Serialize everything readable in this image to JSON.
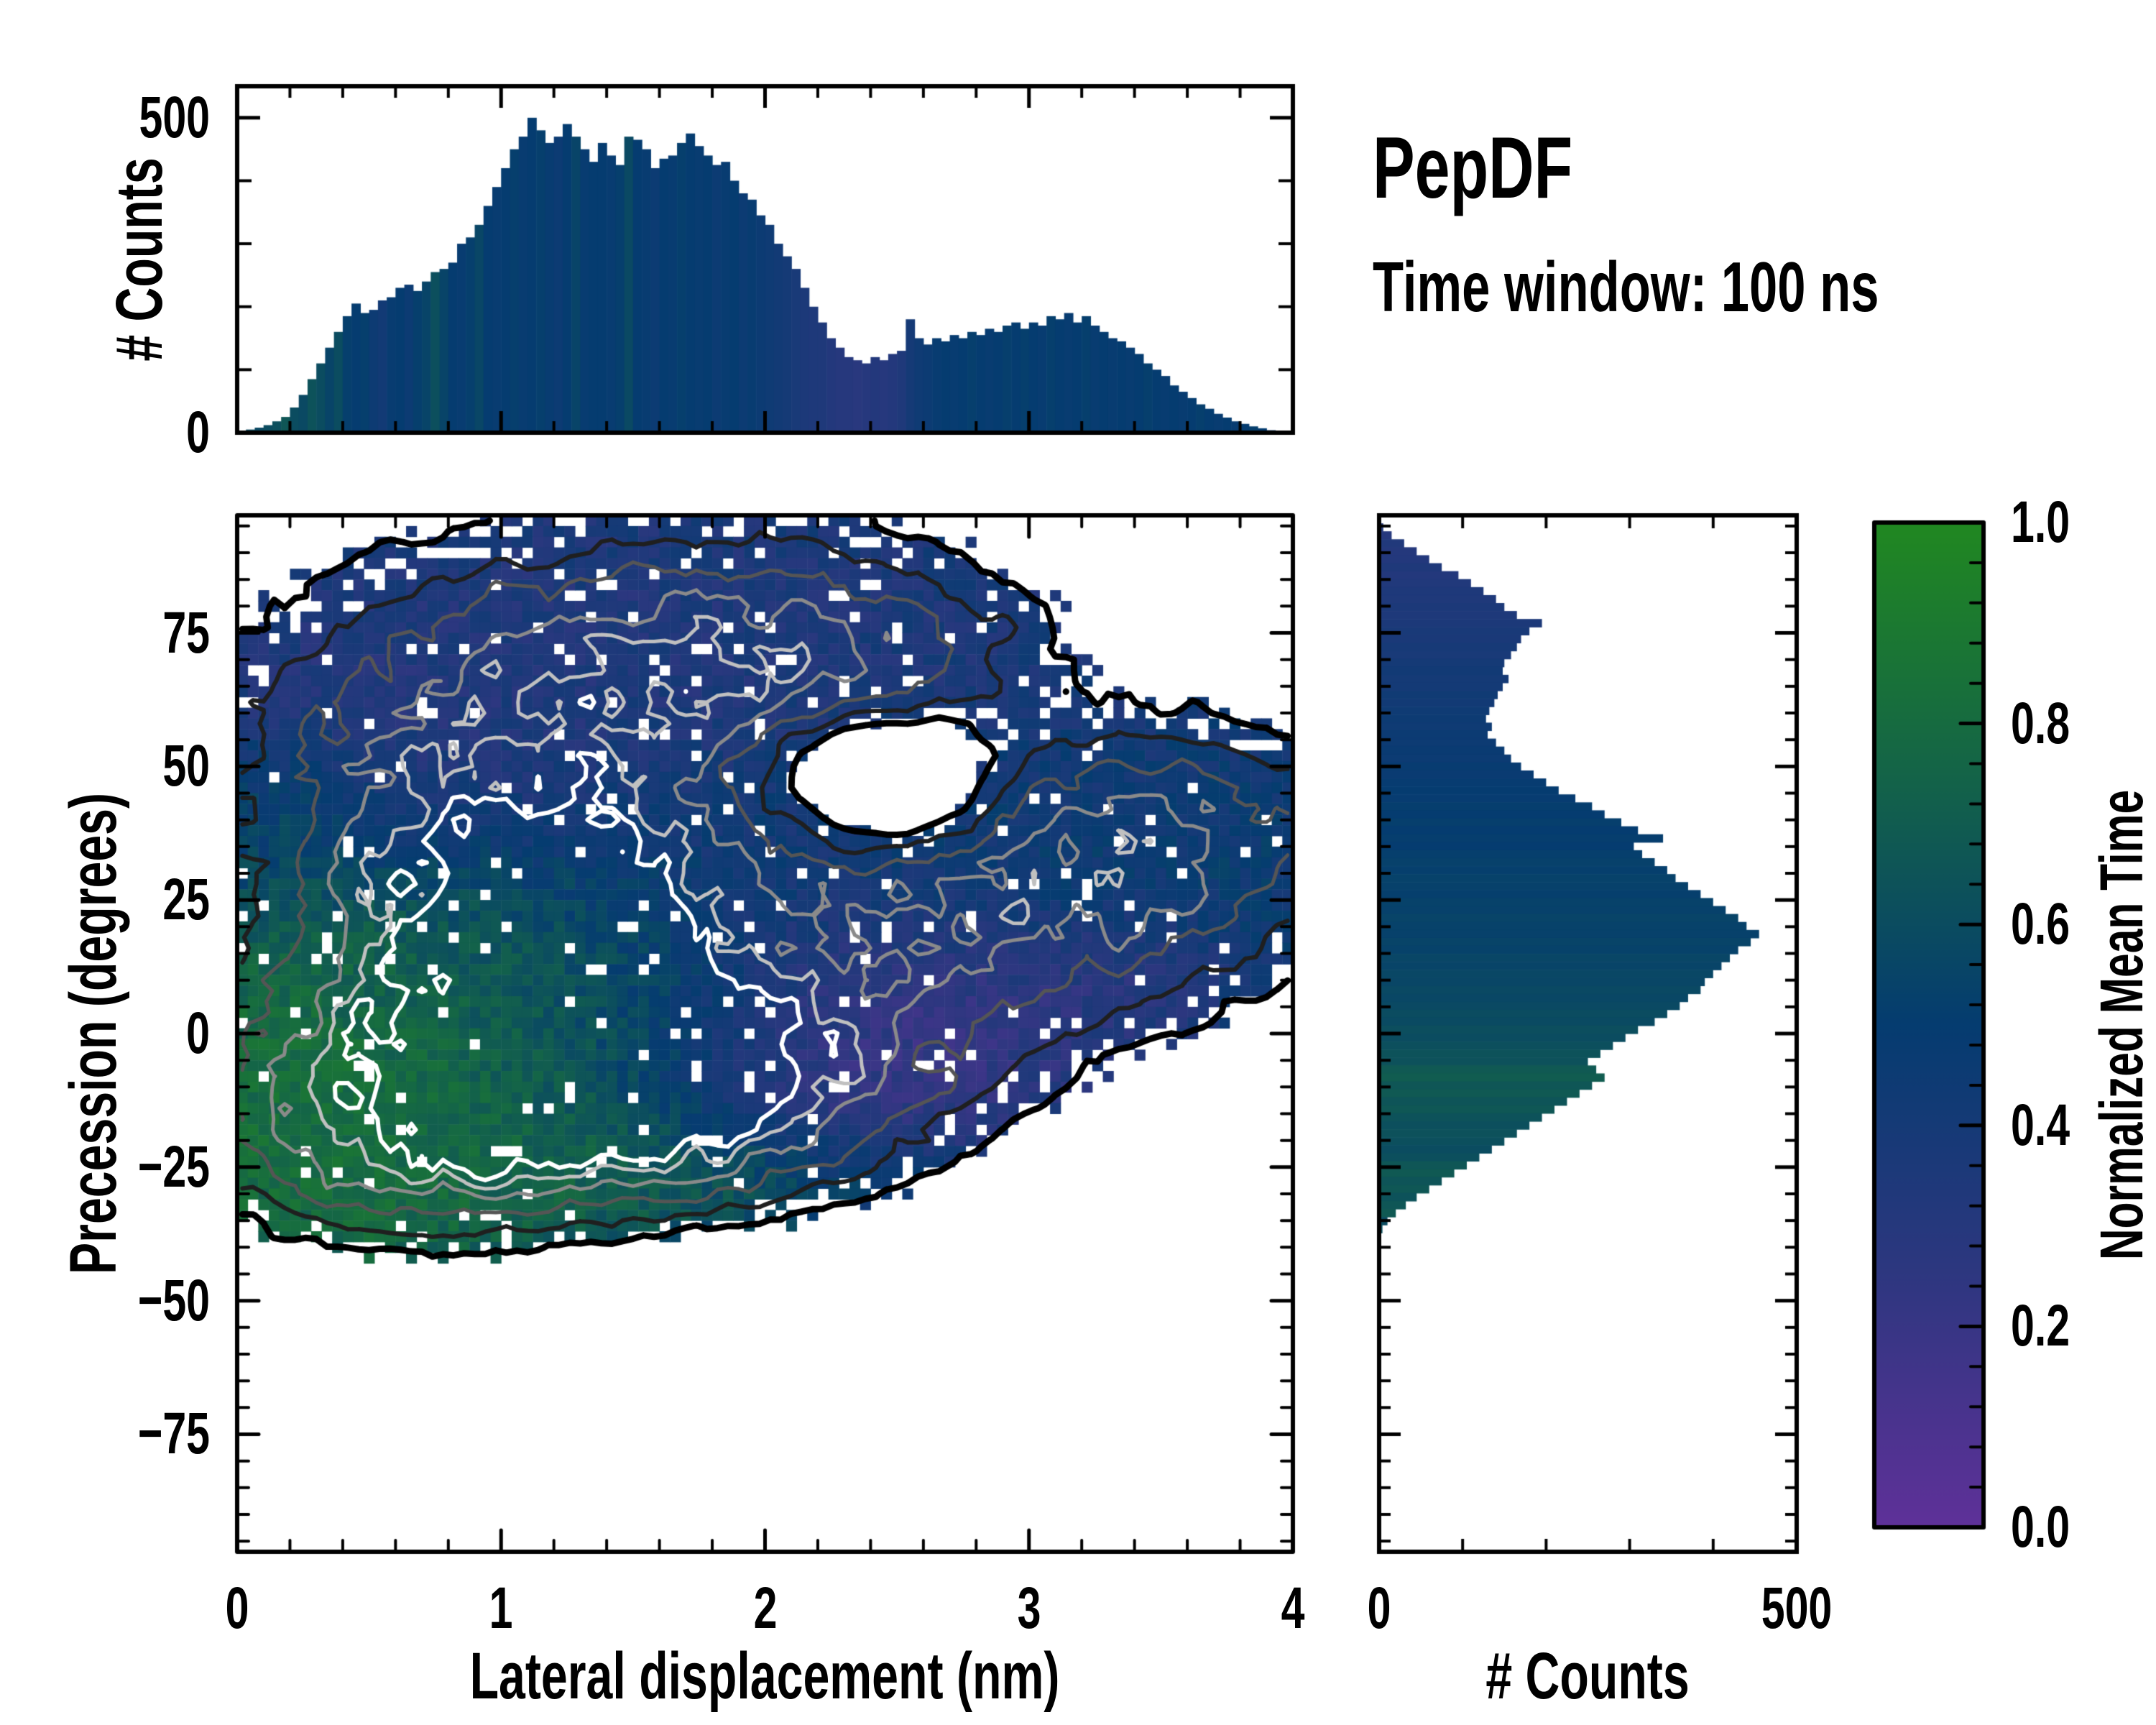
{
  "chart_data": {
    "annotations": {
      "title": "PepDF",
      "subtitle": "Time window: 100 ns"
    },
    "colormap": {
      "name": "purple-navy-green",
      "stops": [
        [
          0.0,
          "#5f3199"
        ],
        [
          0.25,
          "#2e3780"
        ],
        [
          0.5,
          "#053c70"
        ],
        [
          0.75,
          "#146448"
        ],
        [
          1.0,
          "#218821"
        ]
      ]
    },
    "top_histogram": {
      "type": "bar",
      "x_range": [
        0,
        4
      ],
      "y_range": [
        0,
        550
      ],
      "n_bins": 120,
      "ylabel": "# Counts",
      "y_ticks": [
        {
          "v": 0,
          "label": "0"
        },
        {
          "v": 500,
          "label": "500"
        }
      ],
      "y_minor_ticks": [
        100,
        200,
        300,
        400
      ],
      "values": [
        2,
        5,
        8,
        12,
        18,
        25,
        40,
        60,
        85,
        110,
        135,
        160,
        185,
        205,
        190,
        195,
        210,
        215,
        230,
        235,
        225,
        240,
        255,
        260,
        270,
        300,
        310,
        330,
        360,
        390,
        420,
        450,
        470,
        500,
        480,
        460,
        470,
        490,
        470,
        450,
        430,
        460,
        440,
        425,
        470,
        465,
        450,
        420,
        435,
        440,
        460,
        475,
        455,
        440,
        425,
        430,
        400,
        380,
        370,
        345,
        330,
        300,
        280,
        260,
        230,
        200,
        175,
        150,
        135,
        120,
        115,
        110,
        120,
        115,
        125,
        130,
        180,
        150,
        140,
        150,
        145,
        155,
        150,
        160,
        155,
        165,
        160,
        170,
        175,
        165,
        175,
        170,
        185,
        180,
        190,
        175,
        185,
        170,
        160,
        150,
        145,
        135,
        125,
        110,
        100,
        90,
        75,
        65,
        55,
        45,
        38,
        30,
        24,
        18,
        14,
        10,
        7,
        4,
        2,
        1
      ],
      "color_values": [
        0.62,
        0.6,
        0.58,
        0.6,
        0.62,
        0.66,
        0.6,
        0.58,
        0.64,
        0.6,
        0.55,
        0.6,
        0.52,
        0.5,
        0.52,
        0.45,
        0.42,
        0.48,
        0.5,
        0.46,
        0.52,
        0.55,
        0.62,
        0.55,
        0.5,
        0.48,
        0.52,
        0.56,
        0.5,
        0.48,
        0.5,
        0.52,
        0.48,
        0.5,
        0.52,
        0.48,
        0.46,
        0.5,
        0.55,
        0.48,
        0.5,
        0.5,
        0.48,
        0.52,
        0.58,
        0.5,
        0.48,
        0.46,
        0.5,
        0.48,
        0.52,
        0.5,
        0.48,
        0.5,
        0.46,
        0.48,
        0.5,
        0.46,
        0.48,
        0.46,
        0.44,
        0.42,
        0.4,
        0.38,
        0.36,
        0.35,
        0.34,
        0.32,
        0.3,
        0.3,
        0.28,
        0.3,
        0.32,
        0.3,
        0.32,
        0.34,
        0.4,
        0.44,
        0.46,
        0.48,
        0.5,
        0.48,
        0.5,
        0.52,
        0.5,
        0.48,
        0.5,
        0.52,
        0.5,
        0.52,
        0.5,
        0.48,
        0.52,
        0.5,
        0.48,
        0.5,
        0.52,
        0.48,
        0.5,
        0.48,
        0.5,
        0.48,
        0.5,
        0.52,
        0.5,
        0.48,
        0.5,
        0.48,
        0.5,
        0.52,
        0.5,
        0.48,
        0.5,
        0.48,
        0.5,
        0.52,
        0.5,
        0.48,
        0.5,
        0.5
      ]
    },
    "right_histogram": {
      "type": "bar",
      "orientation": "horizontal",
      "x_range": [
        0,
        500
      ],
      "y_range": [
        -97.5,
        97.5
      ],
      "n_bins": 130,
      "xlabel": "# Counts",
      "x_ticks": [
        {
          "v": 0,
          "label": "0"
        },
        {
          "v": 500,
          "label": "500"
        }
      ],
      "x_minor_ticks": [
        100,
        200,
        300,
        400
      ],
      "values": [
        0,
        5,
        15,
        30,
        45,
        60,
        75,
        95,
        110,
        125,
        140,
        150,
        165,
        195,
        180,
        170,
        165,
        158,
        150,
        148,
        155,
        148,
        142,
        138,
        132,
        128,
        135,
        130,
        140,
        150,
        158,
        170,
        185,
        200,
        215,
        235,
        255,
        270,
        290,
        310,
        340,
        305,
        315,
        330,
        345,
        355,
        370,
        385,
        400,
        415,
        430,
        440,
        455,
        445,
        430,
        420,
        410,
        400,
        390,
        385,
        370,
        360,
        345,
        330,
        310,
        295,
        280,
        265,
        250,
        260,
        270,
        255,
        240,
        225,
        210,
        195,
        180,
        165,
        150,
        135,
        120,
        105,
        90,
        75,
        60,
        45,
        32,
        20,
        10,
        4,
        0,
        0,
        0,
        0,
        0,
        0,
        0,
        0,
        0,
        0,
        0,
        0,
        0,
        0,
        0,
        0,
        0,
        0,
        0,
        0,
        0,
        0,
        0,
        0,
        0,
        0,
        0,
        0,
        0,
        0,
        0,
        0,
        0,
        0,
        0,
        0,
        0,
        0,
        0,
        0
      ],
      "color_values": [
        0.3,
        0.32,
        0.3,
        0.33,
        0.31,
        0.32,
        0.34,
        0.32,
        0.33,
        0.35,
        0.34,
        0.36,
        0.35,
        0.36,
        0.38,
        0.37,
        0.39,
        0.38,
        0.4,
        0.42,
        0.4,
        0.41,
        0.43,
        0.42,
        0.44,
        0.45,
        0.44,
        0.46,
        0.45,
        0.47,
        0.46,
        0.48,
        0.47,
        0.49,
        0.5,
        0.49,
        0.51,
        0.5,
        0.52,
        0.5,
        0.51,
        0.5,
        0.52,
        0.53,
        0.52,
        0.54,
        0.53,
        0.52,
        0.54,
        0.53,
        0.55,
        0.54,
        0.53,
        0.55,
        0.54,
        0.56,
        0.55,
        0.57,
        0.56,
        0.58,
        0.57,
        0.58,
        0.6,
        0.59,
        0.61,
        0.6,
        0.62,
        0.64,
        0.63,
        0.68,
        0.7,
        0.66,
        0.68,
        0.65,
        0.67,
        0.64,
        0.62,
        0.63,
        0.62,
        0.6,
        0.62,
        0.66,
        0.68,
        0.65,
        0.67,
        0.64,
        0.66,
        0.68,
        0.6,
        0.62,
        0.5,
        0.5,
        0.5,
        0.5,
        0.5,
        0.5,
        0.5,
        0.5,
        0.5,
        0.5,
        0.5,
        0.5,
        0.5,
        0.5,
        0.5,
        0.5,
        0.5,
        0.5,
        0.5,
        0.5,
        0.5,
        0.5,
        0.5,
        0.5,
        0.5,
        0.5,
        0.5,
        0.5,
        0.5,
        0.5,
        0.5,
        0.5,
        0.5,
        0.5,
        0.5,
        0.5,
        0.5,
        0.5,
        0.5,
        0.5
      ]
    },
    "main_heatmap": {
      "type": "heatmap",
      "xlabel": "Lateral displacement (nm)",
      "ylabel": "Precession (degrees)",
      "x_range": [
        0,
        4
      ],
      "y_range": [
        -97,
        97
      ],
      "x_ticks": [
        {
          "v": 0,
          "label": "0"
        },
        {
          "v": 1,
          "label": "1"
        },
        {
          "v": 2,
          "label": "2"
        },
        {
          "v": 3,
          "label": "3"
        },
        {
          "v": 4,
          "label": "4"
        }
      ],
      "x_minor_step": 0.2,
      "y_ticks": [
        {
          "v": 75,
          "label": "75"
        },
        {
          "v": 50,
          "label": "50"
        },
        {
          "v": 25,
          "label": "25"
        },
        {
          "v": 0,
          "label": "0"
        },
        {
          "v": -25,
          "label": "−25"
        },
        {
          "v": -50,
          "label": "−50"
        },
        {
          "v": -75,
          "label": "−75"
        }
      ],
      "y_minor_step": 5,
      "grid": [
        100,
        97
      ],
      "seed": 1337,
      "threshold": 0.13,
      "dropout": 0.055,
      "density_noise": 0.9,
      "time_noise": 0.16,
      "density_clusters": [
        {
          "x": 1.25,
          "y": 12,
          "sx": 0.45,
          "sy": 16,
          "a": 1.0
        },
        {
          "x": 1.7,
          "y": -8,
          "sx": 0.35,
          "sy": 10,
          "a": 0.75
        },
        {
          "x": 0.9,
          "y": 35,
          "sx": 0.55,
          "sy": 18,
          "a": 0.6
        },
        {
          "x": 0.55,
          "y": -8,
          "sx": 0.45,
          "sy": 16,
          "a": 0.65
        },
        {
          "x": 1.3,
          "y": 65,
          "sx": 0.8,
          "sy": 18,
          "a": 0.5
        },
        {
          "x": 2.1,
          "y": 72,
          "sx": 0.6,
          "sy": 13,
          "a": 0.42
        },
        {
          "x": 2.9,
          "y": 25,
          "sx": 0.75,
          "sy": 16,
          "a": 0.55
        },
        {
          "x": 3.5,
          "y": 40,
          "sx": 0.45,
          "sy": 12,
          "a": 0.35
        },
        {
          "x": 2.2,
          "y": -5,
          "sx": 0.5,
          "sy": 14,
          "a": 0.45
        },
        {
          "x": 1.1,
          "y": -22,
          "sx": 0.6,
          "sy": 9,
          "a": 0.6
        },
        {
          "x": 2.4,
          "y": 50,
          "sx": 0.33,
          "sy": 8,
          "a": -0.5
        },
        {
          "x": 2.6,
          "y": 38,
          "sx": 0.3,
          "sy": 6,
          "a": -0.2
        }
      ],
      "base_time": 0.45,
      "base_weight": 0.7,
      "time_regions": [
        {
          "x": 0.35,
          "y": -12,
          "sx": 0.55,
          "sy": 22,
          "t": 0.92,
          "w": 3.0
        },
        {
          "x": 1.3,
          "y": -27,
          "sx": 0.8,
          "sy": 8,
          "t": 0.8,
          "w": 1.6
        },
        {
          "x": 0.8,
          "y": 8,
          "sx": 0.5,
          "sy": 18,
          "t": 0.68,
          "w": 1.2
        },
        {
          "x": 1.45,
          "y": 5,
          "sx": 0.5,
          "sy": 14,
          "t": 0.6,
          "w": 1.4
        },
        {
          "x": 1.4,
          "y": 70,
          "sx": 1.2,
          "sy": 20,
          "t": 0.3,
          "w": 2.0
        },
        {
          "x": 0.4,
          "y": 55,
          "sx": 0.5,
          "sy": 15,
          "t": 0.28,
          "w": 1.6
        },
        {
          "x": 0.15,
          "y": 45,
          "sx": 0.25,
          "sy": 8,
          "t": 0.8,
          "w": 1.2
        },
        {
          "x": 2.45,
          "y": 0,
          "sx": 0.45,
          "sy": 16,
          "t": 0.12,
          "w": 2.4
        },
        {
          "x": 3.3,
          "y": 10,
          "sx": 0.3,
          "sy": 8,
          "t": 0.2,
          "w": 1.5
        },
        {
          "x": 3.0,
          "y": 30,
          "sx": 0.8,
          "sy": 15,
          "t": 0.5,
          "w": 1.4
        },
        {
          "x": 2.2,
          "y": 40,
          "sx": 0.6,
          "sy": 12,
          "t": 0.45,
          "w": 1.0
        }
      ],
      "contour_levels": [
        0.13,
        0.24,
        0.38,
        0.55,
        0.72,
        0.88
      ],
      "contour_colors": [
        "#000000",
        "#1f1f1f",
        "#555555",
        "#8a8a8a",
        "#c0c0c0",
        "#ffffff"
      ],
      "contour_widths": [
        9,
        6,
        5,
        5,
        5,
        6
      ]
    },
    "colorbar": {
      "label": "Normalized Mean Time",
      "range": [
        0.0,
        1.0
      ],
      "ticks": [
        {
          "v": 0,
          "label": "0.0"
        },
        {
          "v": 0.2,
          "label": "0.2"
        },
        {
          "v": 0.4,
          "label": "0.4"
        },
        {
          "v": 0.6,
          "label": "0.6"
        },
        {
          "v": 0.8,
          "label": "0.8"
        },
        {
          "v": 1,
          "label": "1.0"
        }
      ],
      "minor_step": 0.04
    }
  }
}
